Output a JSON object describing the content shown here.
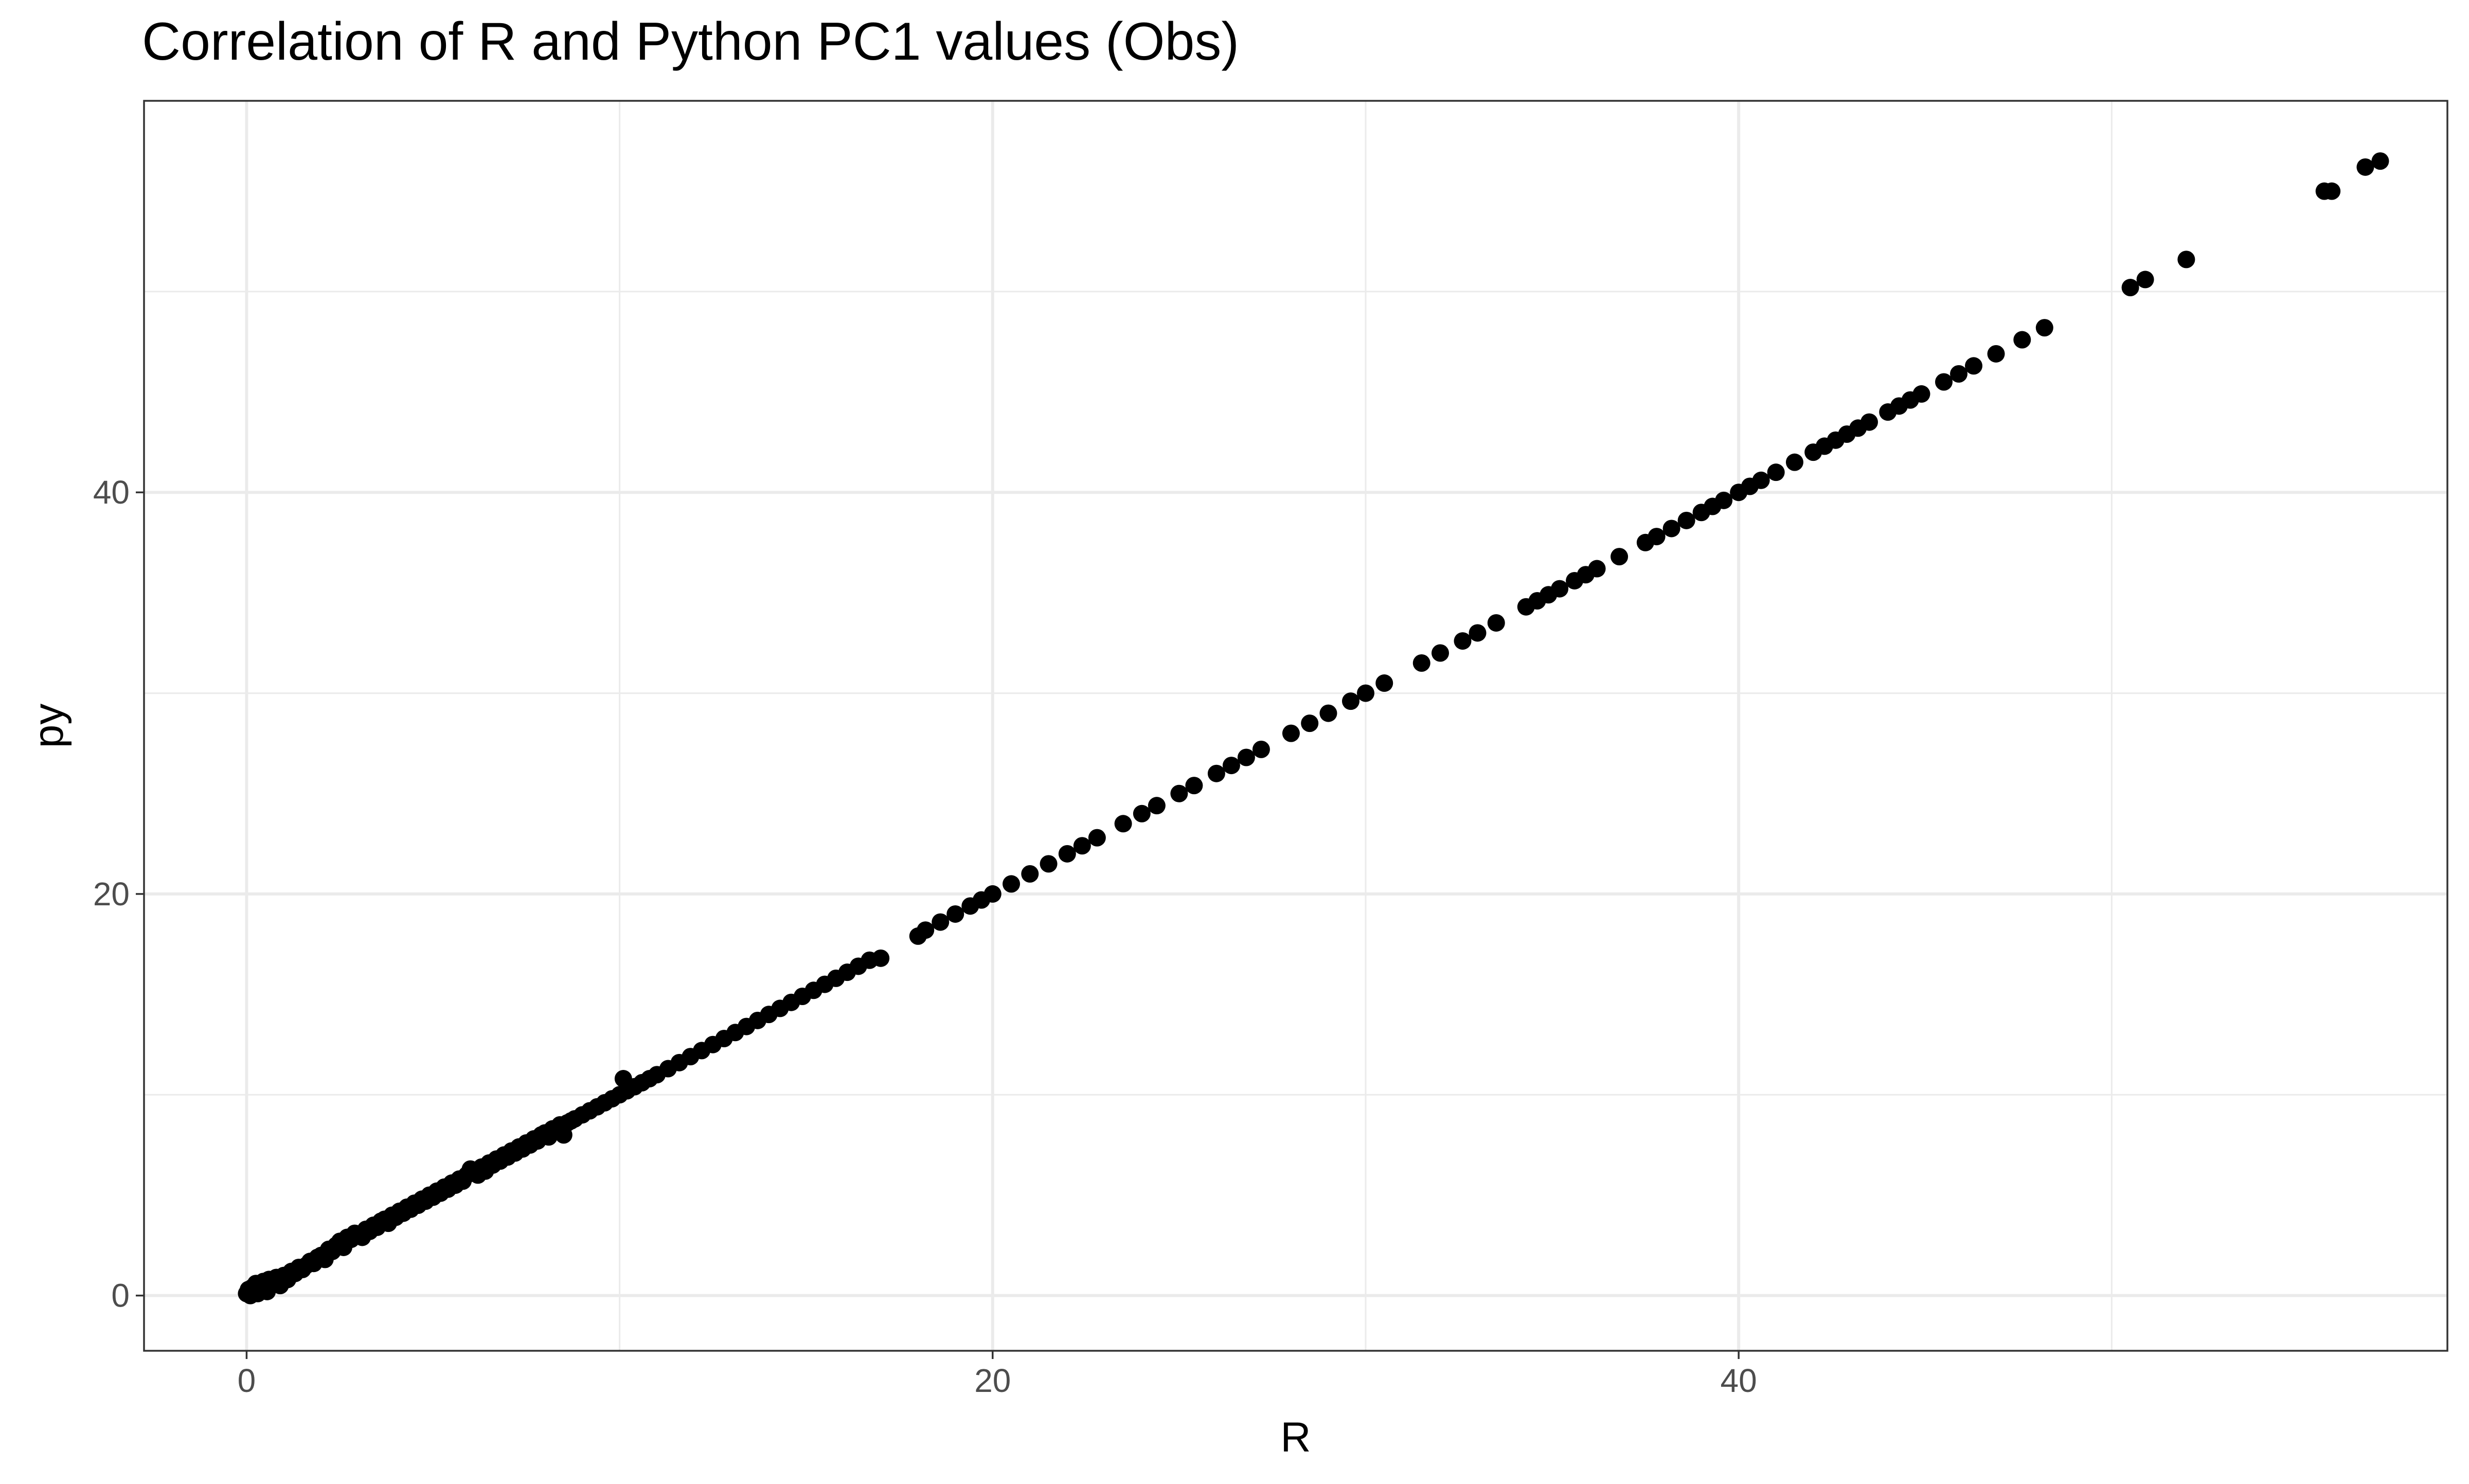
{
  "chart_data": {
    "type": "scatter",
    "title": "Correlation of R and Python PC1 values (Obs)",
    "xlabel": "R",
    "ylabel": "py",
    "xlim": [
      -2.75,
      59.0
    ],
    "ylim": [
      -2.75,
      59.5
    ],
    "xticks": [
      0,
      20,
      40
    ],
    "yticks": [
      0,
      20,
      40
    ],
    "x_minor_gridlines": [
      10,
      30,
      50
    ],
    "y_minor_gridlines": [
      10,
      30,
      50
    ],
    "grid": true,
    "legend": "none",
    "point_color": "#000000",
    "points": [
      [
        0.0,
        0.1
      ],
      [
        0.05,
        0.3
      ],
      [
        0.1,
        0.0
      ],
      [
        0.15,
        0.4
      ],
      [
        0.2,
        0.2
      ],
      [
        0.25,
        0.6
      ],
      [
        0.3,
        0.1
      ],
      [
        0.35,
        0.5
      ],
      [
        0.4,
        0.3
      ],
      [
        0.45,
        0.7
      ],
      [
        0.5,
        0.4
      ],
      [
        0.55,
        0.2
      ],
      [
        0.6,
        0.8
      ],
      [
        0.7,
        0.6
      ],
      [
        0.8,
        0.9
      ],
      [
        0.9,
        0.5
      ],
      [
        1.0,
        1.0
      ],
      [
        1.1,
        0.8
      ],
      [
        1.2,
        1.2
      ],
      [
        1.3,
        1.1
      ],
      [
        1.4,
        1.4
      ],
      [
        1.5,
        1.3
      ],
      [
        1.6,
        1.5
      ],
      [
        1.7,
        1.7
      ],
      [
        1.8,
        1.6
      ],
      [
        1.9,
        1.9
      ],
      [
        2.0,
        2.0
      ],
      [
        2.1,
        1.8
      ],
      [
        2.2,
        2.3
      ],
      [
        2.3,
        2.2
      ],
      [
        2.4,
        2.5
      ],
      [
        2.5,
        2.7
      ],
      [
        2.6,
        2.4
      ],
      [
        2.7,
        2.9
      ],
      [
        2.8,
        2.8
      ],
      [
        2.9,
        3.1
      ],
      [
        3.0,
        3.0
      ],
      [
        3.1,
        2.9
      ],
      [
        3.2,
        3.3
      ],
      [
        3.3,
        3.2
      ],
      [
        3.4,
        3.5
      ],
      [
        3.5,
        3.4
      ],
      [
        3.6,
        3.7
      ],
      [
        3.7,
        3.8
      ],
      [
        3.8,
        3.6
      ],
      [
        3.9,
        4.0
      ],
      [
        4.0,
        3.9
      ],
      [
        4.1,
        4.2
      ],
      [
        4.2,
        4.1
      ],
      [
        4.3,
        4.4
      ],
      [
        4.4,
        4.3
      ],
      [
        4.5,
        4.6
      ],
      [
        4.6,
        4.5
      ],
      [
        4.7,
        4.8
      ],
      [
        4.8,
        4.7
      ],
      [
        4.9,
        5.0
      ],
      [
        5.0,
        4.9
      ],
      [
        5.1,
        5.2
      ],
      [
        5.2,
        5.1
      ],
      [
        5.3,
        5.4
      ],
      [
        5.4,
        5.3
      ],
      [
        5.5,
        5.6
      ],
      [
        5.6,
        5.5
      ],
      [
        5.7,
        5.8
      ],
      [
        5.8,
        5.7
      ],
      [
        5.9,
        6.0
      ],
      [
        6.0,
        6.3
      ],
      [
        6.1,
        6.1
      ],
      [
        6.2,
        6.0
      ],
      [
        6.3,
        6.4
      ],
      [
        6.4,
        6.2
      ],
      [
        6.5,
        6.6
      ],
      [
        6.6,
        6.5
      ],
      [
        6.7,
        6.8
      ],
      [
        6.8,
        6.7
      ],
      [
        6.9,
        7.0
      ],
      [
        7.0,
        6.9
      ],
      [
        7.1,
        7.2
      ],
      [
        7.2,
        7.1
      ],
      [
        7.3,
        7.4
      ],
      [
        7.4,
        7.3
      ],
      [
        7.5,
        7.6
      ],
      [
        7.6,
        7.5
      ],
      [
        7.7,
        7.8
      ],
      [
        7.8,
        7.7
      ],
      [
        7.9,
        8.0
      ],
      [
        8.0,
        8.1
      ],
      [
        8.1,
        7.9
      ],
      [
        8.2,
        8.3
      ],
      [
        8.3,
        8.2
      ],
      [
        8.4,
        8.5
      ],
      [
        8.5,
        8.0
      ],
      [
        8.6,
        8.6
      ],
      [
        8.7,
        8.7
      ],
      [
        8.8,
        8.8
      ],
      [
        9.0,
        9.0
      ],
      [
        9.2,
        9.2
      ],
      [
        9.4,
        9.4
      ],
      [
        9.6,
        9.6
      ],
      [
        9.8,
        9.8
      ],
      [
        10.0,
        10.0
      ],
      [
        10.1,
        10.8
      ],
      [
        10.2,
        10.2
      ],
      [
        10.4,
        10.4
      ],
      [
        10.6,
        10.6
      ],
      [
        10.8,
        10.8
      ],
      [
        11.0,
        11.0
      ],
      [
        11.3,
        11.3
      ],
      [
        11.6,
        11.6
      ],
      [
        11.9,
        11.9
      ],
      [
        12.2,
        12.2
      ],
      [
        12.5,
        12.5
      ],
      [
        12.8,
        12.8
      ],
      [
        13.1,
        13.1
      ],
      [
        13.4,
        13.4
      ],
      [
        13.7,
        13.7
      ],
      [
        14.0,
        14.0
      ],
      [
        14.3,
        14.3
      ],
      [
        14.6,
        14.6
      ],
      [
        14.9,
        14.9
      ],
      [
        15.2,
        15.2
      ],
      [
        15.5,
        15.5
      ],
      [
        15.8,
        15.8
      ],
      [
        16.1,
        16.1
      ],
      [
        16.4,
        16.4
      ],
      [
        16.7,
        16.7
      ],
      [
        17.0,
        16.8
      ],
      [
        18.0,
        17.9
      ],
      [
        18.2,
        18.2
      ],
      [
        18.6,
        18.6
      ],
      [
        19.0,
        19.0
      ],
      [
        19.4,
        19.4
      ],
      [
        19.7,
        19.7
      ],
      [
        20.0,
        20.0
      ],
      [
        20.5,
        20.5
      ],
      [
        21.0,
        21.0
      ],
      [
        21.5,
        21.5
      ],
      [
        22.0,
        22.0
      ],
      [
        22.4,
        22.4
      ],
      [
        22.8,
        22.8
      ],
      [
        23.5,
        23.5
      ],
      [
        24.0,
        24.0
      ],
      [
        24.4,
        24.4
      ],
      [
        25.0,
        25.0
      ],
      [
        25.4,
        25.4
      ],
      [
        26.0,
        26.0
      ],
      [
        26.4,
        26.4
      ],
      [
        26.8,
        26.8
      ],
      [
        27.2,
        27.2
      ],
      [
        28.0,
        28.0
      ],
      [
        28.5,
        28.5
      ],
      [
        29.0,
        29.0
      ],
      [
        29.6,
        29.6
      ],
      [
        30.0,
        30.0
      ],
      [
        30.5,
        30.5
      ],
      [
        31.5,
        31.5
      ],
      [
        32.0,
        32.0
      ],
      [
        32.6,
        32.6
      ],
      [
        33.0,
        33.0
      ],
      [
        33.5,
        33.5
      ],
      [
        34.3,
        34.3
      ],
      [
        34.6,
        34.6
      ],
      [
        34.9,
        34.9
      ],
      [
        35.2,
        35.2
      ],
      [
        35.6,
        35.6
      ],
      [
        35.9,
        35.9
      ],
      [
        36.2,
        36.2
      ],
      [
        36.8,
        36.8
      ],
      [
        37.5,
        37.5
      ],
      [
        37.8,
        37.8
      ],
      [
        38.2,
        38.2
      ],
      [
        38.6,
        38.6
      ],
      [
        39.0,
        39.0
      ],
      [
        39.3,
        39.3
      ],
      [
        39.6,
        39.6
      ],
      [
        40.0,
        40.0
      ],
      [
        40.3,
        40.3
      ],
      [
        40.6,
        40.6
      ],
      [
        41.0,
        41.0
      ],
      [
        41.5,
        41.5
      ],
      [
        42.0,
        42.0
      ],
      [
        42.3,
        42.3
      ],
      [
        42.6,
        42.6
      ],
      [
        42.9,
        42.9
      ],
      [
        43.2,
        43.2
      ],
      [
        43.5,
        43.5
      ],
      [
        44.0,
        44.0
      ],
      [
        44.3,
        44.3
      ],
      [
        44.6,
        44.6
      ],
      [
        44.9,
        44.9
      ],
      [
        45.5,
        45.5
      ],
      [
        45.9,
        45.9
      ],
      [
        46.3,
        46.3
      ],
      [
        46.9,
        46.9
      ],
      [
        47.6,
        47.6
      ],
      [
        48.2,
        48.2
      ],
      [
        50.5,
        50.2
      ],
      [
        50.9,
        50.6
      ],
      [
        52.0,
        51.6
      ],
      [
        55.7,
        55.0
      ],
      [
        55.9,
        55.0
      ],
      [
        56.8,
        56.2
      ],
      [
        57.2,
        56.5
      ]
    ]
  }
}
